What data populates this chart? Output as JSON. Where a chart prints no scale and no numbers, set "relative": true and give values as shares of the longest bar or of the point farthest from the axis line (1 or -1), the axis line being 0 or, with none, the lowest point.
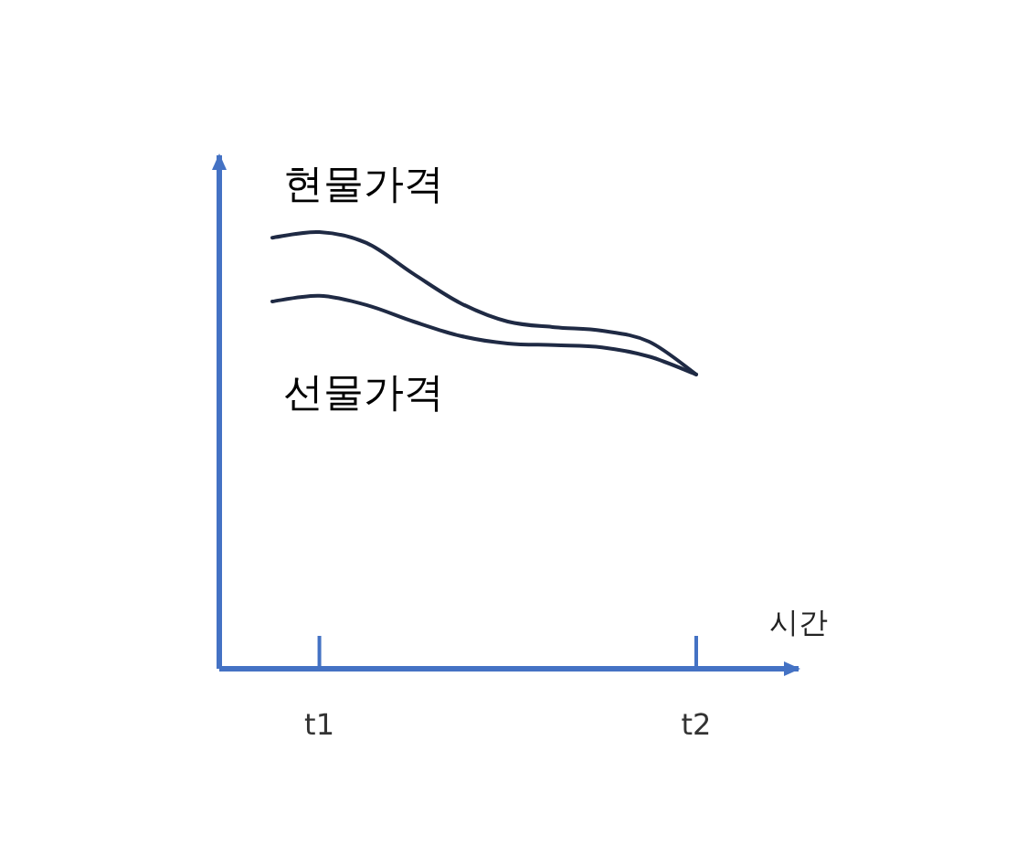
{
  "chart_data": {
    "type": "line",
    "relative": true,
    "xlabel": "시간",
    "categories": [
      null,
      "t1",
      null,
      null,
      null,
      null,
      null,
      null,
      null,
      "t2"
    ],
    "grid": false,
    "series": [
      {
        "name": "현물가격",
        "color": "#1f2a44",
        "values": [
          0.987,
          1,
          0.975,
          0.904,
          0.837,
          0.795,
          0.782,
          0.774,
          0.749,
          0.674
        ]
      },
      {
        "name": "선물가격",
        "color": "#1f2a44",
        "values": [
          0.841,
          0.854,
          0.833,
          0.795,
          0.762,
          0.745,
          0.741,
          0.736,
          0.715,
          0.674
        ]
      }
    ]
  }
}
